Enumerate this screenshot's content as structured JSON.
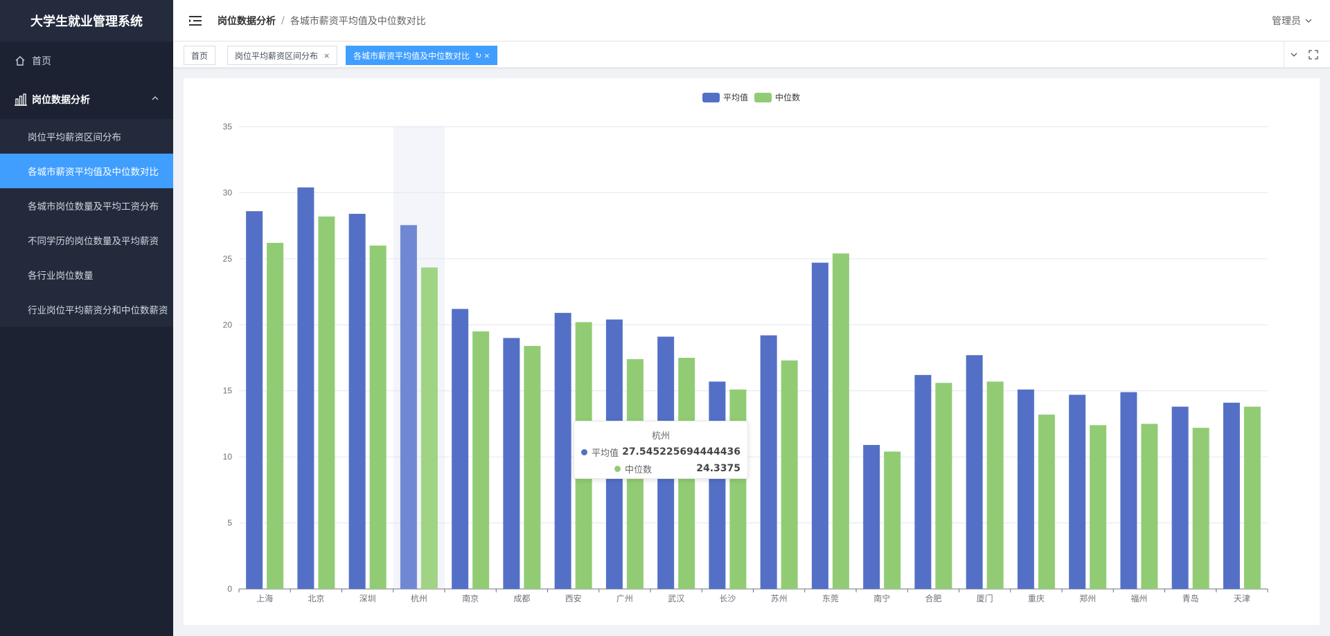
{
  "app": {
    "title": "大学生就业管理系统"
  },
  "sidebar": {
    "home_label": "首页",
    "group_label": "岗位数据分析",
    "items": [
      {
        "label": "岗位平均薪资区间分布"
      },
      {
        "label": "各城市薪资平均值及中位数对比"
      },
      {
        "label": "各城市岗位数量及平均工资分布"
      },
      {
        "label": "不同学历的岗位数量及平均薪资"
      },
      {
        "label": "各行业岗位数量"
      },
      {
        "label": "行业岗位平均薪资分和中位数薪资"
      }
    ]
  },
  "header": {
    "breadcrumb_parent": "岗位数据分析",
    "breadcrumb_separator": "/",
    "breadcrumb_current": "各城市薪资平均值及中位数对比",
    "user_label": "管理员"
  },
  "tags": {
    "home": "首页",
    "tag1": "岗位平均薪资区间分布",
    "tag2": "各城市薪资平均值及中位数对比",
    "close_glyph": "×",
    "refresh_glyph": "↻"
  },
  "colors": {
    "accent": "#409eff",
    "series_avg": "#5470c6",
    "series_median": "#91cc75",
    "sidebar_bg": "#1c2232"
  },
  "tooltip": {
    "title": "杭州",
    "rows": [
      {
        "name": "平均值",
        "value": "27.545225694444436"
      },
      {
        "name": "中位数",
        "value": "24.3375"
      }
    ]
  },
  "chart_data": {
    "type": "bar",
    "title": "",
    "xlabel": "",
    "ylabel": "",
    "ylim": [
      0,
      35
    ],
    "yticks": [
      0,
      5,
      10,
      15,
      20,
      25,
      30,
      35
    ],
    "grid": true,
    "legend_position": "top-center",
    "highlighted_category": "杭州",
    "categories": [
      "上海",
      "北京",
      "深圳",
      "杭州",
      "南京",
      "成都",
      "西安",
      "广州",
      "武汉",
      "长沙",
      "苏州",
      "东莞",
      "南宁",
      "合肥",
      "厦门",
      "重庆",
      "郑州",
      "福州",
      "青岛",
      "天津"
    ],
    "series": [
      {
        "name": "平均值",
        "color": "#5470c6",
        "values": [
          28.6,
          30.4,
          28.4,
          27.545225694444436,
          21.2,
          19.0,
          20.9,
          20.4,
          19.1,
          15.7,
          19.2,
          24.7,
          10.9,
          16.2,
          17.7,
          15.1,
          14.7,
          14.9,
          13.8,
          14.1
        ]
      },
      {
        "name": "中位数",
        "color": "#91cc75",
        "values": [
          26.2,
          28.2,
          26.0,
          24.3375,
          19.5,
          18.4,
          20.2,
          17.4,
          17.5,
          15.1,
          17.3,
          25.4,
          10.4,
          15.6,
          15.7,
          13.2,
          12.4,
          12.5,
          12.2,
          13.8
        ]
      }
    ]
  }
}
